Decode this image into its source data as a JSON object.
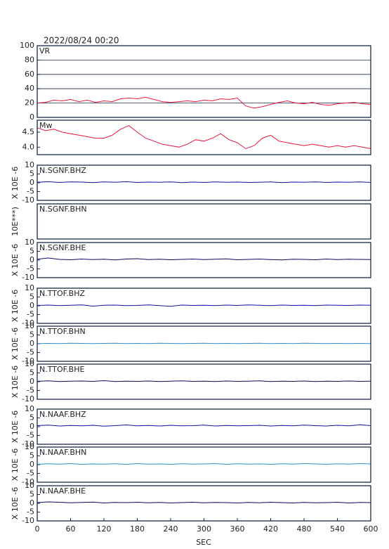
{
  "title": "2022/08/24 00:20",
  "xlabel": "SEC",
  "chart_data": [
    {
      "type": "line",
      "title": "VR",
      "color": "#e8193c",
      "grid": true,
      "xlim": [
        0,
        600
      ],
      "ylim": [
        0,
        100
      ],
      "yticks": [
        0,
        20,
        40,
        60,
        80,
        100
      ],
      "x": [
        0,
        15,
        30,
        45,
        60,
        75,
        90,
        105,
        120,
        135,
        150,
        165,
        180,
        195,
        210,
        225,
        240,
        255,
        270,
        285,
        300,
        315,
        330,
        345,
        360,
        375,
        390,
        405,
        420,
        435,
        450,
        465,
        480,
        495,
        510,
        525,
        540,
        555,
        570,
        585,
        600
      ],
      "values": [
        20,
        21,
        24,
        23,
        25,
        22,
        24,
        21,
        23,
        22,
        26,
        27,
        26,
        28,
        25,
        22,
        21,
        22,
        23,
        22,
        24,
        23,
        26,
        25,
        27,
        16,
        13,
        15,
        18,
        21,
        23,
        20,
        19,
        21,
        18,
        17,
        19,
        20,
        21,
        19,
        18
      ]
    },
    {
      "type": "line",
      "title": "Mw",
      "color": "#e8193c",
      "xlim": [
        0,
        600
      ],
      "ylim": [
        3.75,
        4.9
      ],
      "yticks": [
        {
          "value": 4,
          "label": "4.0"
        },
        4.5
      ],
      "x": [
        0,
        15,
        30,
        45,
        60,
        75,
        90,
        105,
        120,
        135,
        150,
        165,
        180,
        195,
        210,
        225,
        240,
        255,
        270,
        285,
        300,
        315,
        330,
        345,
        360,
        375,
        390,
        405,
        420,
        435,
        450,
        465,
        480,
        495,
        510,
        525,
        540,
        555,
        570,
        585,
        600
      ],
      "values": [
        4.65,
        4.55,
        4.6,
        4.5,
        4.45,
        4.4,
        4.35,
        4.3,
        4.3,
        4.4,
        4.6,
        4.72,
        4.5,
        4.3,
        4.2,
        4.1,
        4.05,
        4.0,
        4.1,
        4.25,
        4.2,
        4.3,
        4.45,
        4.25,
        4.15,
        3.95,
        4.05,
        4.3,
        4.4,
        4.2,
        4.15,
        4.1,
        4.05,
        4.1,
        4.05,
        4.0,
        4.05,
        4.0,
        4.05,
        4.0,
        3.95
      ]
    },
    {
      "type": "line",
      "title": "N.SGNF.BHZ",
      "ylabel": "X 10E -6",
      "color": "#1010a0",
      "xlim": [
        0,
        600
      ],
      "ylim": [
        -10,
        10
      ],
      "yticks": [
        -10,
        -5,
        0,
        5,
        10
      ],
      "x": [
        0,
        20,
        40,
        60,
        80,
        100,
        120,
        140,
        160,
        180,
        200,
        220,
        240,
        260,
        280,
        300,
        320,
        340,
        360,
        380,
        400,
        420,
        440,
        460,
        480,
        500,
        520,
        540,
        560,
        580,
        600
      ],
      "values": [
        0.3,
        0.6,
        0.2,
        0.5,
        0.4,
        0.1,
        0.5,
        0.3,
        0.6,
        0.2,
        0.4,
        0.3,
        0.5,
        0.1,
        0.4,
        0.2,
        0.5,
        0.3,
        0.4,
        0.2,
        0.3,
        0.5,
        0.1,
        0.4,
        0.3,
        0.5,
        0.2,
        0.4,
        0.3,
        0.5,
        0.2
      ]
    },
    {
      "type": "line",
      "title": "N.SGNF.BHN",
      "ylabel": "10E***)"
    },
    {
      "type": "line",
      "title": "N.SGNF.BHE",
      "ylabel": "X 10E -6",
      "color": "#0a0a60",
      "xlim": [
        0,
        600
      ],
      "ylim": [
        -10,
        10
      ],
      "yticks": [
        -10,
        -5,
        0,
        5,
        10
      ],
      "x": [
        0,
        20,
        40,
        60,
        80,
        100,
        120,
        140,
        160,
        180,
        200,
        220,
        240,
        260,
        280,
        300,
        320,
        340,
        360,
        380,
        400,
        420,
        440,
        460,
        480,
        500,
        520,
        540,
        560,
        580,
        600
      ],
      "values": [
        0.5,
        1.2,
        0.4,
        0.2,
        0.6,
        0.3,
        0.5,
        0.1,
        0.6,
        0.8,
        0.3,
        0.5,
        0.2,
        0.4,
        0.6,
        0.3,
        0.5,
        0.7,
        0.2,
        0.4,
        0.6,
        0.3,
        0.1,
        0.5,
        0.4,
        0.2,
        0.6,
        0.3,
        0.5,
        0.4,
        0.3
      ]
    },
    {
      "type": "line",
      "title": "N.TTOF.BHZ",
      "ylabel": "X 10E -6",
      "color": "#1010a0",
      "xlim": [
        0,
        600
      ],
      "ylim": [
        -10,
        10
      ],
      "yticks": [
        -10,
        -5,
        0,
        5,
        10
      ],
      "x": [
        0,
        20,
        40,
        60,
        80,
        100,
        120,
        140,
        160,
        180,
        200,
        220,
        240,
        260,
        280,
        300,
        320,
        340,
        360,
        380,
        400,
        420,
        440,
        460,
        480,
        500,
        520,
        540,
        560,
        580,
        600
      ],
      "values": [
        0.2,
        0.4,
        0.1,
        0.3,
        0.5,
        -0.2,
        0.3,
        0.4,
        0.1,
        0.2,
        0.5,
        0.1,
        -0.3,
        0.4,
        0.2,
        0.3,
        0.1,
        0.4,
        0.2,
        0.5,
        0.3,
        0.1,
        0.4,
        0.2,
        0.3,
        0.1,
        0.4,
        0.3,
        0.2,
        0.4,
        0.3
      ]
    },
    {
      "type": "line",
      "title": "N.TTOF.BHN",
      "ylabel": "X 10E -6",
      "color": "#2a8fcc",
      "xlim": [
        0,
        600
      ],
      "ylim": [
        -10,
        10
      ],
      "yticks": [
        -10,
        -5,
        0,
        5,
        10
      ],
      "x": [
        0,
        20,
        40,
        60,
        80,
        100,
        120,
        140,
        160,
        180,
        200,
        220,
        240,
        260,
        280,
        300,
        320,
        340,
        360,
        380,
        400,
        420,
        440,
        460,
        480,
        500,
        520,
        540,
        560,
        580,
        600
      ],
      "values": [
        0.1,
        0.2,
        0.1,
        0.3,
        0.2,
        0.1,
        0.2,
        0.3,
        0.1,
        0.2,
        0.1,
        0.3,
        0.2,
        0.1,
        0.2,
        0.3,
        0.1,
        0.2,
        0.1,
        0.2,
        0.3,
        0.1,
        0.2,
        0.1,
        0.3,
        0.2,
        0.1,
        0.2,
        0.1,
        0.2,
        0.1
      ]
    },
    {
      "type": "line",
      "title": "N.TTOF.BHE",
      "ylabel": "X 10E -6",
      "color": "#0a0a60",
      "xlim": [
        0,
        600
      ],
      "ylim": [
        -10,
        10
      ],
      "yticks": [
        -10,
        -5,
        0,
        5,
        10
      ],
      "x": [
        0,
        20,
        40,
        60,
        80,
        100,
        120,
        140,
        160,
        180,
        200,
        220,
        240,
        260,
        280,
        300,
        320,
        340,
        360,
        380,
        400,
        420,
        440,
        460,
        480,
        500,
        520,
        540,
        560,
        580,
        600
      ],
      "values": [
        0.2,
        0.5,
        0.1,
        0.3,
        0.4,
        0.2,
        0.6,
        0.1,
        0.3,
        0.2,
        0.4,
        0.1,
        0.3,
        0.5,
        0.2,
        0.3,
        0.1,
        0.4,
        0.2,
        0.3,
        0.5,
        0.1,
        0.3,
        0.2,
        0.4,
        0.1,
        0.3,
        0.2,
        0.4,
        0.2,
        0.3
      ]
    },
    {
      "type": "line",
      "title": "N.NAAF.BHZ",
      "ylabel": "X 10E -6",
      "color": "#1010a0",
      "xlim": [
        0,
        600
      ],
      "ylim": [
        -10,
        10
      ],
      "yticks": [
        -10,
        -5,
        0,
        5,
        10
      ],
      "x": [
        0,
        20,
        40,
        60,
        80,
        100,
        120,
        140,
        160,
        180,
        200,
        220,
        240,
        260,
        280,
        300,
        320,
        340,
        360,
        380,
        400,
        420,
        440,
        460,
        480,
        500,
        520,
        540,
        560,
        580,
        600
      ],
      "values": [
        0.6,
        0.9,
        0.4,
        0.7,
        0.5,
        0.8,
        0.3,
        0.6,
        1.0,
        0.5,
        0.7,
        0.4,
        0.8,
        0.5,
        0.6,
        0.9,
        0.4,
        0.7,
        0.5,
        0.6,
        0.8,
        0.4,
        0.7,
        0.5,
        0.9,
        0.6,
        0.4,
        0.8,
        0.5,
        1.1,
        0.6
      ]
    },
    {
      "type": "line",
      "title": "N.NAAF.BHN",
      "ylabel": "X 10E -6",
      "color": "#2a8fcc",
      "xlim": [
        0,
        600
      ],
      "ylim": [
        -10,
        10
      ],
      "yticks": [
        -10,
        -5,
        0,
        5,
        10
      ],
      "x": [
        0,
        20,
        40,
        60,
        80,
        100,
        120,
        140,
        160,
        180,
        200,
        220,
        240,
        260,
        280,
        300,
        320,
        340,
        360,
        380,
        400,
        420,
        440,
        460,
        480,
        500,
        520,
        540,
        560,
        580,
        600
      ],
      "values": [
        0.2,
        0.5,
        0.3,
        0.6,
        0.2,
        0.4,
        0.3,
        0.5,
        0.2,
        0.6,
        0.3,
        0.4,
        0.2,
        0.5,
        0.3,
        0.4,
        0.6,
        0.2,
        0.5,
        0.3,
        0.4,
        0.2,
        0.5,
        0.3,
        0.6,
        0.4,
        0.2,
        0.5,
        0.3,
        0.6,
        0.4
      ]
    },
    {
      "type": "line",
      "title": "N.NAAF.BHE",
      "ylabel": "X 10E -6",
      "color": "#0a0a60",
      "xlim": [
        0,
        600
      ],
      "ylim": [
        -10,
        10
      ],
      "yticks": [
        -10,
        -5,
        0,
        5,
        10
      ],
      "xticks": [
        0,
        60,
        120,
        180,
        240,
        300,
        360,
        420,
        480,
        540,
        600
      ],
      "x": [
        0,
        20,
        40,
        60,
        80,
        100,
        120,
        140,
        160,
        180,
        200,
        220,
        240,
        260,
        280,
        300,
        320,
        340,
        360,
        380,
        400,
        420,
        440,
        460,
        480,
        500,
        520,
        540,
        560,
        580,
        600
      ],
      "values": [
        0.4,
        0.8,
        0.6,
        0.3,
        0.5,
        0.7,
        0.2,
        0.5,
        0.4,
        0.6,
        0.3,
        0.5,
        0.2,
        0.4,
        0.6,
        0.3,
        0.5,
        0.4,
        0.2,
        0.5,
        0.3,
        0.6,
        0.4,
        0.2,
        0.5,
        0.3,
        0.4,
        0.6,
        0.2,
        0.5,
        0.4
      ]
    }
  ]
}
